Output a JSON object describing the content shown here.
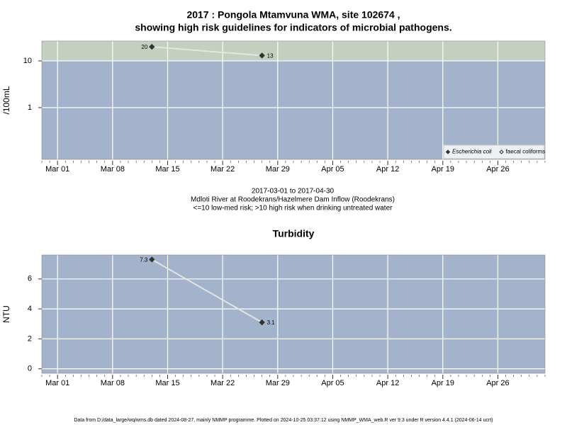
{
  "chart_data": [
    {
      "type": "line",
      "title": [
        "2017 : Pongola Mtamvuna WMA, site 102674 ,",
        "showing high risk guidelines for indicators of microbial pathogens."
      ],
      "y_label": "/100mL",
      "log_y": true,
      "threshold": 10,
      "threshold_color": "#c4cfc0",
      "background": "#a3b3cb",
      "grid": true,
      "x": [
        "2017-03-13",
        "2017-03-27"
      ],
      "series": [
        {
          "name": "Escherichia coli",
          "color": "#333333",
          "line_color": "#e4e4e4",
          "values": [
            20,
            13
          ],
          "filled": true
        },
        {
          "name": "faecal coliforms",
          "color": "#333333",
          "line_color": "#e4e4e4",
          "values": [
            null,
            null
          ],
          "filled": false
        }
      ],
      "xlim": [
        "2017-02-27",
        "2017-05-02"
      ],
      "xticks": [
        {
          "value": "2017-03-01",
          "label": "Mar 01"
        },
        {
          "value": "2017-03-08",
          "label": "Mar 08"
        },
        {
          "value": "2017-03-15",
          "label": "Mar 15"
        },
        {
          "value": "2017-03-22",
          "label": "Mar 22"
        },
        {
          "value": "2017-03-29",
          "label": "Mar 29"
        },
        {
          "value": "2017-04-05",
          "label": "Apr 05"
        },
        {
          "value": "2017-04-12",
          "label": "Apr 12"
        },
        {
          "value": "2017-04-19",
          "label": "Apr 19"
        },
        {
          "value": "2017-04-26",
          "label": "Apr 26"
        }
      ],
      "ylim": [
        0.078,
        26.5
      ],
      "yticks": [
        1,
        10
      ],
      "legend": "lower right",
      "annotations": [
        "2017-03-01 to 2017-04-30",
        "Mdloti River at Roodekrans/Hazelmere Dam Inflow (Roodekrans)",
        "<=10 low-med risk; >10 high risk when drinking untreated water"
      ]
    },
    {
      "type": "line",
      "title": [
        "Turbidity"
      ],
      "y_label": "NTU",
      "log_y": false,
      "background": "#a3b3cb",
      "grid": true,
      "x": [
        "2017-03-13",
        "2017-03-27"
      ],
      "series": [
        {
          "color": "#333333",
          "line_color": "#e4e4e4",
          "values": [
            7.3,
            3.1
          ],
          "filled": true
        }
      ],
      "xlim": [
        "2017-02-27",
        "2017-05-02"
      ],
      "xticks": [
        {
          "value": "2017-03-01",
          "label": "Mar 01"
        },
        {
          "value": "2017-03-08",
          "label": "Mar 08"
        },
        {
          "value": "2017-03-15",
          "label": "Mar 15"
        },
        {
          "value": "2017-03-22",
          "label": "Mar 22"
        },
        {
          "value": "2017-03-29",
          "label": "Mar 29"
        },
        {
          "value": "2017-04-05",
          "label": "Apr 05"
        },
        {
          "value": "2017-04-12",
          "label": "Apr 12"
        },
        {
          "value": "2017-04-19",
          "label": "Apr 19"
        },
        {
          "value": "2017-04-26",
          "label": "Apr 26"
        }
      ],
      "ylim": [
        -0.3,
        7.6
      ],
      "yticks": [
        0,
        2,
        4,
        6
      ]
    }
  ],
  "footer": "Data from D:/data_large/wq/wms.db dated 2024-08-27, mainly NMMP programme. Plotted on 2024-10-25 03:37:12 using NMMP_WMA_web.R ver 9.3 under R version 4.4.1 (2024-06-14 ucrt)"
}
